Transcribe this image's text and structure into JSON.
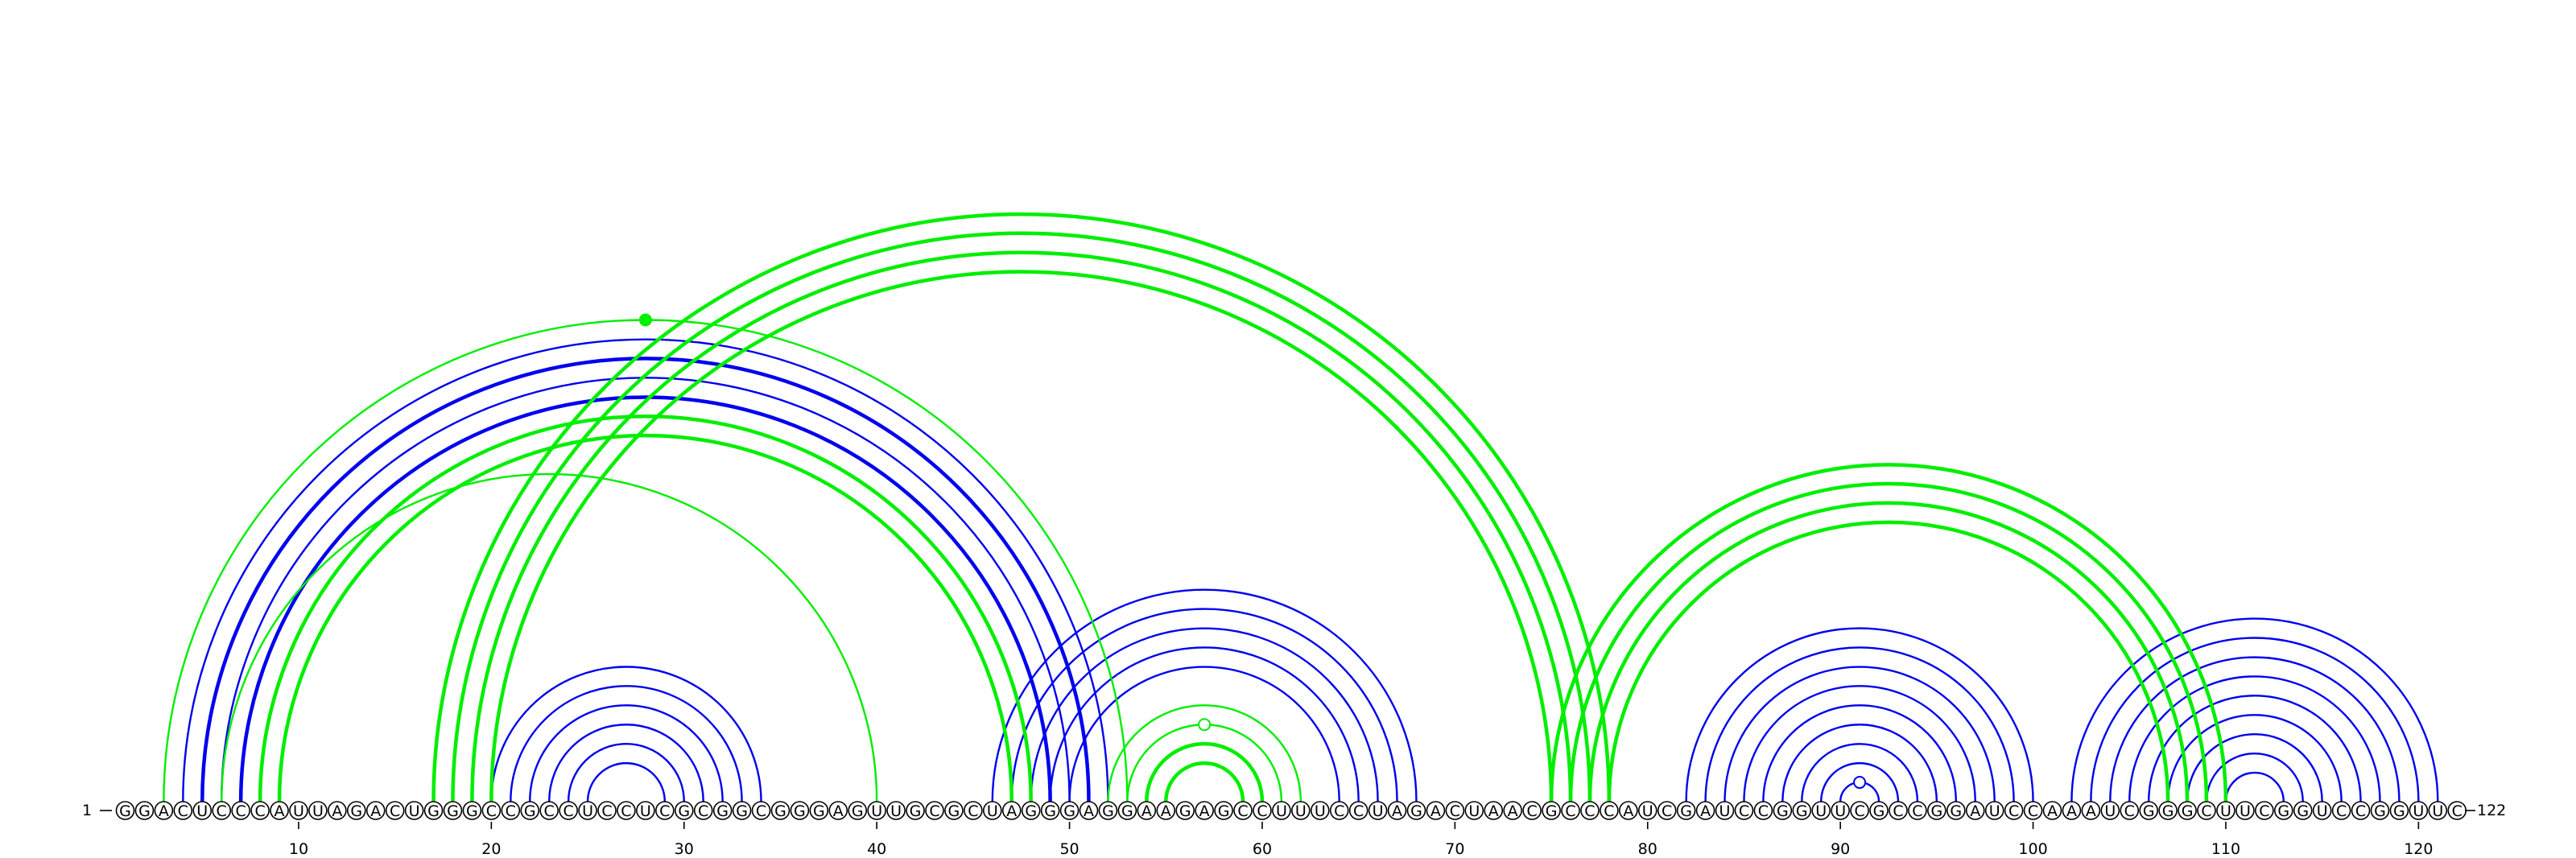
{
  "sequence": "GGACUCCCAUUAGACUGGGCCGCCUCCUCGCGGCGGGAGUUGCGCUAGGGAGGAAGAGCCUUUCCUAGACUAACGCCCAUCGAUCCGGUUCGCCGGAUCCAAAUCGGGCUUCGGUCCGGUUC",
  "start_label": "1",
  "end_label": "122",
  "ticks": [
    10,
    20,
    30,
    40,
    50,
    60,
    70,
    80,
    90,
    100,
    110,
    120
  ],
  "colors": {
    "blue": "#0000ee",
    "green": "#00ee00"
  },
  "arcs": [
    {
      "i": 20,
      "j": 34,
      "color": "blue",
      "width": 2.4
    },
    {
      "i": 21,
      "j": 33,
      "color": "blue",
      "width": 2.4
    },
    {
      "i": 22,
      "j": 32,
      "color": "blue",
      "width": 2.4
    },
    {
      "i": 23,
      "j": 31,
      "color": "blue",
      "width": 2.4
    },
    {
      "i": 24,
      "j": 30,
      "color": "blue",
      "width": 2.4
    },
    {
      "i": 25,
      "j": 29,
      "color": "blue",
      "width": 2.4
    },
    {
      "i": 4,
      "j": 52,
      "color": "blue",
      "width": 2.4
    },
    {
      "i": 5,
      "j": 51,
      "color": "blue",
      "width": 4.5
    },
    {
      "i": 6,
      "j": 50,
      "color": "blue",
      "width": 2.4
    },
    {
      "i": 7,
      "j": 49,
      "color": "blue",
      "width": 4.5
    },
    {
      "i": 46,
      "j": 68,
      "color": "blue",
      "width": 2.4
    },
    {
      "i": 47,
      "j": 67,
      "color": "blue",
      "width": 2.4
    },
    {
      "i": 48,
      "j": 66,
      "color": "blue",
      "width": 2.4
    },
    {
      "i": 49,
      "j": 65,
      "color": "blue",
      "width": 2.4
    },
    {
      "i": 50,
      "j": 64,
      "color": "blue",
      "width": 2.4
    },
    {
      "i": 82,
      "j": 100,
      "color": "blue",
      "width": 2.4
    },
    {
      "i": 83,
      "j": 99,
      "color": "blue",
      "width": 2.4
    },
    {
      "i": 84,
      "j": 98,
      "color": "blue",
      "width": 2.4
    },
    {
      "i": 85,
      "j": 97,
      "color": "blue",
      "width": 2.4
    },
    {
      "i": 86,
      "j": 96,
      "color": "blue",
      "width": 2.4
    },
    {
      "i": 87,
      "j": 95,
      "color": "blue",
      "width": 2.4
    },
    {
      "i": 88,
      "j": 94,
      "color": "blue",
      "width": 2.4
    },
    {
      "i": 89,
      "j": 93,
      "color": "blue",
      "width": 2.4
    },
    {
      "i": 90,
      "j": 92,
      "color": "blue",
      "width": 2.4,
      "marker": "open"
    },
    {
      "i": 102,
      "j": 121,
      "color": "blue",
      "width": 2.4
    },
    {
      "i": 103,
      "j": 120,
      "color": "blue",
      "width": 2.4
    },
    {
      "i": 104,
      "j": 119,
      "color": "blue",
      "width": 2.4
    },
    {
      "i": 105,
      "j": 118,
      "color": "blue",
      "width": 2.4
    },
    {
      "i": 106,
      "j": 117,
      "color": "blue",
      "width": 2.4
    },
    {
      "i": 107,
      "j": 116,
      "color": "blue",
      "width": 2.4
    },
    {
      "i": 108,
      "j": 115,
      "color": "blue",
      "width": 2.4
    },
    {
      "i": 109,
      "j": 114,
      "color": "blue",
      "width": 2.4
    },
    {
      "i": 110,
      "j": 113,
      "color": "blue",
      "width": 2.4
    },
    {
      "i": 3,
      "j": 53,
      "color": "green",
      "width": 2.4,
      "marker": "filled"
    },
    {
      "i": 6,
      "j": 40,
      "color": "green",
      "width": 2.4
    },
    {
      "i": 8,
      "j": 48,
      "color": "green",
      "width": 4.5
    },
    {
      "i": 9,
      "j": 47,
      "color": "green",
      "width": 4.5
    },
    {
      "i": 17,
      "j": 78,
      "color": "green",
      "width": 4.5
    },
    {
      "i": 18,
      "j": 77,
      "color": "green",
      "width": 4.5
    },
    {
      "i": 19,
      "j": 76,
      "color": "green",
      "width": 4.5
    },
    {
      "i": 20,
      "j": 75,
      "color": "green",
      "width": 4.5
    },
    {
      "i": 52,
      "j": 62,
      "color": "green",
      "width": 2.4
    },
    {
      "i": 53,
      "j": 61,
      "color": "green",
      "width": 2.4,
      "marker": "open"
    },
    {
      "i": 54,
      "j": 60,
      "color": "green",
      "width": 4.5
    },
    {
      "i": 55,
      "j": 59,
      "color": "green",
      "width": 4.5
    },
    {
      "i": 75,
      "j": 110,
      "color": "green",
      "width": 4.5
    },
    {
      "i": 76,
      "j": 109,
      "color": "green",
      "width": 4.5
    },
    {
      "i": 77,
      "j": 108,
      "color": "green",
      "width": 4.5
    },
    {
      "i": 78,
      "j": 107,
      "color": "green",
      "width": 4.5
    }
  ]
}
